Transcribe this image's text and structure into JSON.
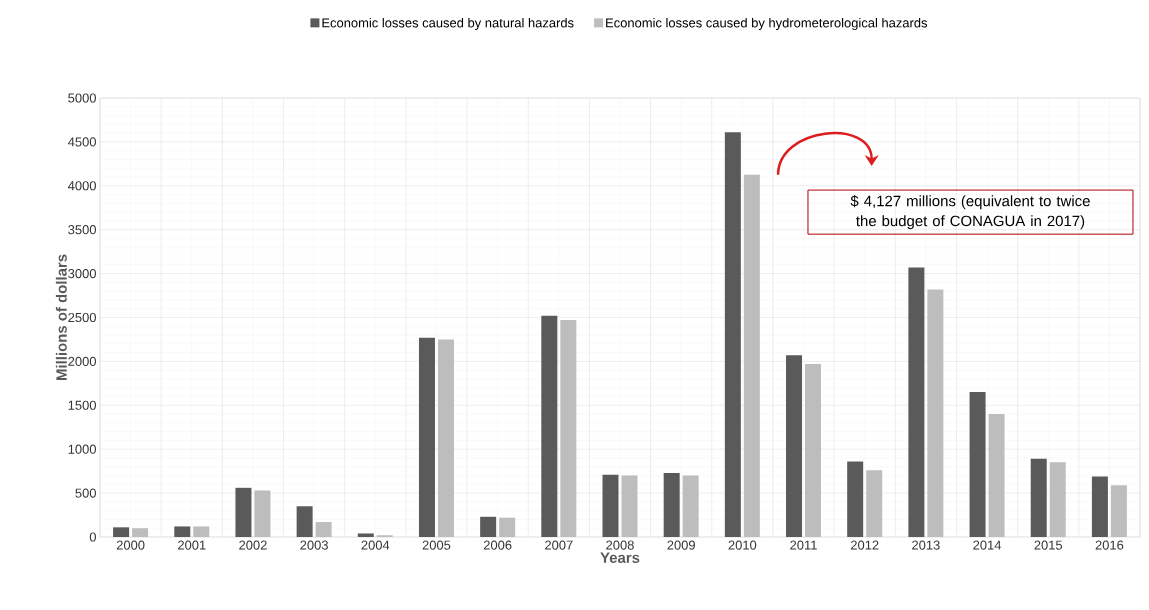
{
  "chart_data": {
    "type": "bar",
    "xlabel": "Years",
    "ylabel": "Millions of dollars",
    "categories": [
      "2000",
      "2001",
      "2002",
      "2003",
      "2004",
      "2005",
      "2006",
      "2007",
      "2008",
      "2009",
      "2010",
      "2011",
      "2012",
      "2013",
      "2014",
      "2015",
      "2016"
    ],
    "series": [
      {
        "name": "Economic losses caused by natural hazards",
        "color": "#5a5a5a",
        "values": [
          110,
          120,
          560,
          350,
          40,
          2270,
          230,
          2520,
          710,
          730,
          4610,
          2070,
          860,
          3070,
          1650,
          890,
          690
        ]
      },
      {
        "name": "Economic losses caused by hydrometerological hazards",
        "color": "#bdbdbd",
        "values": [
          100,
          120,
          530,
          170,
          20,
          2250,
          220,
          2470,
          700,
          700,
          4127,
          1970,
          760,
          2820,
          1400,
          850,
          590
        ]
      }
    ],
    "ylim": [
      0,
      5000
    ],
    "yticks": [
      0,
      500,
      1000,
      1500,
      2000,
      2500,
      3000,
      3500,
      4000,
      4500,
      5000
    ],
    "grid": true,
    "legend": "top",
    "annotations": [
      "$ 4,127 millions (equivalent to twice the budget of CONAGUA in 2017)"
    ]
  }
}
